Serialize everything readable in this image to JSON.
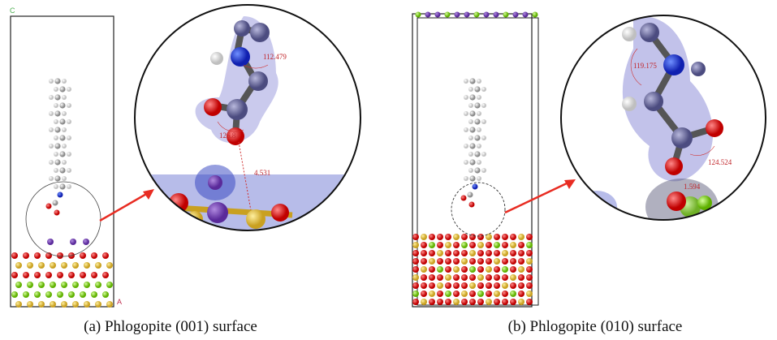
{
  "panels": [
    {
      "caption": "(a) Phlogopite (001) surface",
      "axis_labels": [
        "C",
        "A"
      ],
      "measurements": [
        "112.479",
        "126.8",
        "4.531"
      ]
    },
    {
      "caption": "(b) Phlogopite (010) surface",
      "measurements": [
        "119.175",
        "124.524",
        "1.594"
      ]
    }
  ]
}
